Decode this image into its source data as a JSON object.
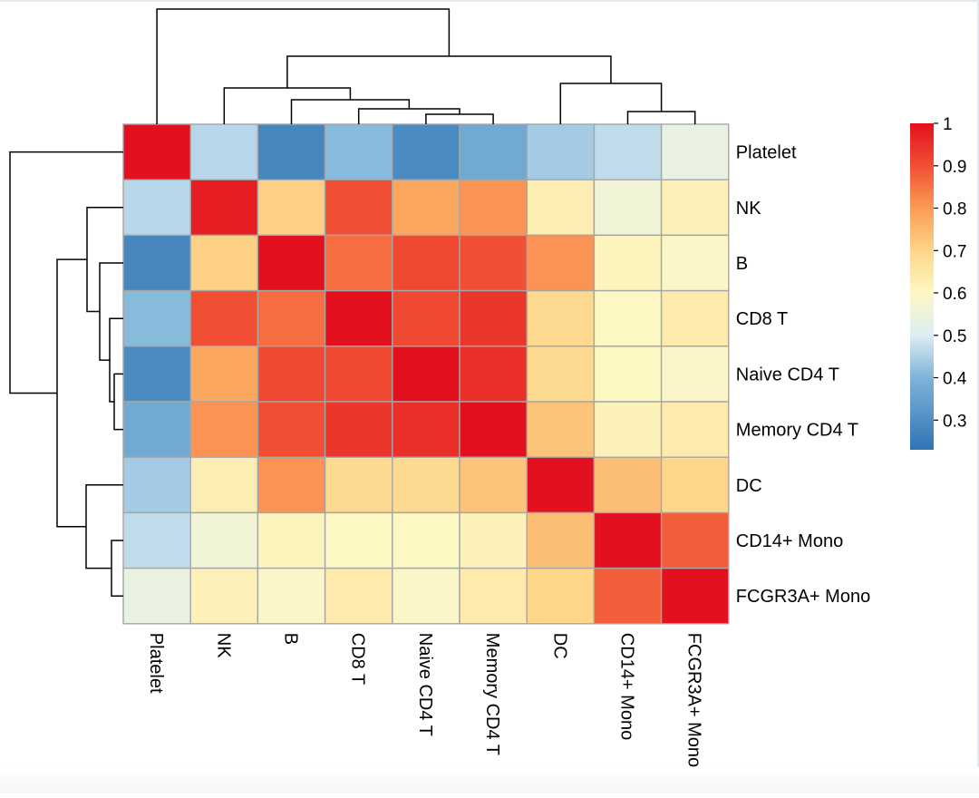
{
  "chart_data": {
    "type": "heatmap",
    "rows": [
      "Platelet",
      "NK",
      "B",
      "CD8 T",
      "Naive CD4 T",
      "Memory CD4 T",
      "DC",
      "CD14+ Mono",
      "FCGR3A+ Mono"
    ],
    "columns": [
      "Platelet",
      "NK",
      "B",
      "CD8 T",
      "Naive CD4 T",
      "Memory CD4 T",
      "DC",
      "CD14+ Mono",
      "FCGR3A+ Mono"
    ],
    "values": [
      [
        1.0,
        0.46,
        0.28,
        0.41,
        0.29,
        0.37,
        0.44,
        0.47,
        0.54
      ],
      [
        0.46,
        0.98,
        0.71,
        0.9,
        0.78,
        0.81,
        0.63,
        0.56,
        0.62
      ],
      [
        0.28,
        0.71,
        1.0,
        0.86,
        0.91,
        0.9,
        0.81,
        0.61,
        0.59
      ],
      [
        0.41,
        0.9,
        0.86,
        1.0,
        0.91,
        0.94,
        0.69,
        0.6,
        0.64
      ],
      [
        0.29,
        0.78,
        0.91,
        0.91,
        1.0,
        0.95,
        0.69,
        0.6,
        0.59
      ],
      [
        0.37,
        0.81,
        0.9,
        0.94,
        0.95,
        1.0,
        0.73,
        0.62,
        0.64
      ],
      [
        0.44,
        0.63,
        0.81,
        0.69,
        0.69,
        0.73,
        1.0,
        0.74,
        0.7
      ],
      [
        0.47,
        0.56,
        0.61,
        0.6,
        0.6,
        0.62,
        0.74,
        1.0,
        0.88
      ],
      [
        0.54,
        0.62,
        0.59,
        0.64,
        0.59,
        0.64,
        0.7,
        0.88,
        1.0
      ]
    ],
    "color_scale": {
      "min": 0.23,
      "max": 1.0,
      "stops": [
        {
          "value": 0.23,
          "color": "#2f74b5"
        },
        {
          "value": 0.4,
          "color": "#7fb4d9"
        },
        {
          "value": 0.5,
          "color": "#dcedf3"
        },
        {
          "value": 0.6,
          "color": "#fdf7c3"
        },
        {
          "value": 0.7,
          "color": "#fdd68a"
        },
        {
          "value": 0.8,
          "color": "#fb9b56"
        },
        {
          "value": 0.9,
          "color": "#f14f33"
        },
        {
          "value": 1.0,
          "color": "#e3101f"
        }
      ]
    },
    "legend": {
      "ticks": [
        1,
        0.9,
        0.8,
        0.7,
        0.6,
        0.5,
        0.4,
        0.3
      ],
      "tick_labels": [
        "1",
        "0.9",
        "0.8",
        "0.7",
        "0.6",
        "0.5",
        "0.4",
        "0.3"
      ],
      "placement": "right"
    },
    "row_dendrogram": true,
    "column_dendrogram": true,
    "grid_color": "#a6a6a6"
  }
}
